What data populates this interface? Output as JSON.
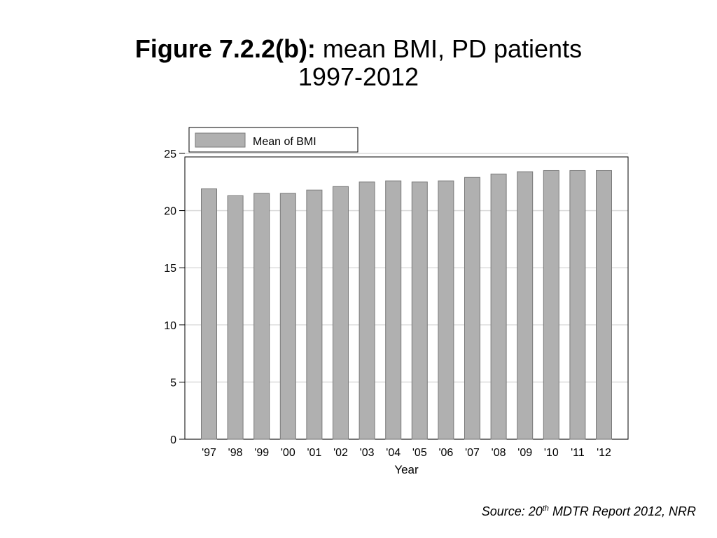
{
  "title": {
    "bold_part": "Figure 7.2.2(b):",
    "normal_part": " mean BMI, PD patients",
    "line2": "1997-2012"
  },
  "source": {
    "prefix": "Source: 20",
    "superscript": "th",
    "suffix": " MDTR Report 2012, NRR"
  },
  "colors": {
    "bar_fill": "#b0b0b0",
    "bar_stroke": "#7a7a7a",
    "grid": "#dcdcdc",
    "axis": "#000000"
  },
  "chart_data": {
    "type": "bar",
    "categories": [
      "'97",
      "'98",
      "'99",
      "'00",
      "'01",
      "'02",
      "'03",
      "'04",
      "'05",
      "'06",
      "'07",
      "'08",
      "'09",
      "'10",
      "'11",
      "'12"
    ],
    "series": [
      {
        "name": "Mean of BMI",
        "values": [
          21.9,
          21.3,
          21.5,
          21.5,
          21.8,
          22.1,
          22.5,
          22.6,
          22.5,
          22.6,
          22.9,
          23.2,
          23.4,
          23.5,
          23.5,
          23.5
        ]
      }
    ],
    "xlabel": "Year",
    "ylabel": "",
    "ylim": [
      0,
      25
    ],
    "yticks": [
      0,
      5,
      10,
      15,
      20,
      25
    ],
    "legend": "top-left",
    "grid": true
  }
}
